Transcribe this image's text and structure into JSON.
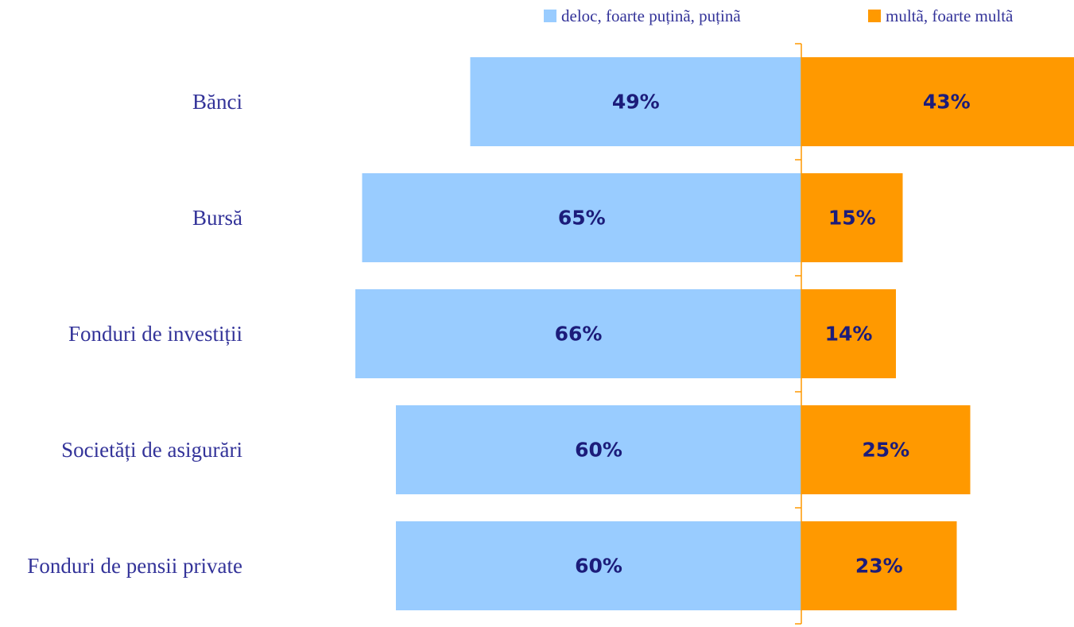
{
  "chart_data": {
    "type": "diverging-bar",
    "categories": [
      "Bănci",
      "Bursă",
      "Fonduri de investiții",
      "Societăți de asigurări",
      "Fonduri de pensii private"
    ],
    "series": [
      {
        "name": "deloc, foarte puținã, puținã",
        "color": "#99ccff",
        "values": [
          49,
          65,
          66,
          60,
          60
        ],
        "value_labels": [
          "49%",
          "65%",
          "66%",
          "60%",
          "60%"
        ]
      },
      {
        "name": "multã, foarte multã",
        "color": "#ff9900",
        "values": [
          43,
          15,
          14,
          25,
          23
        ],
        "value_labels": [
          "43%",
          "15%",
          "14%",
          "25%",
          "23%"
        ]
      }
    ],
    "legend": "top"
  }
}
